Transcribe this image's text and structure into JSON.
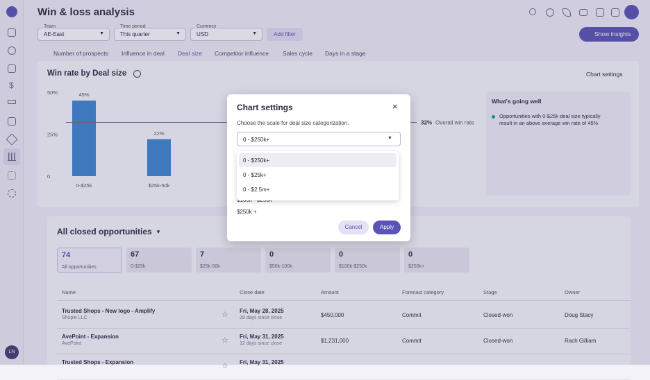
{
  "header": {
    "title": "Win & loss analysis"
  },
  "filters": [
    {
      "label": "Team",
      "value": "AE-East"
    },
    {
      "label": "Time period",
      "value": "This quarter"
    },
    {
      "label": "Currency",
      "value": "USD"
    }
  ],
  "add_filter": "Add filter",
  "show_insights": "Show insights",
  "tabs": [
    "Number of prospects",
    "Influence in deal",
    "Deal size",
    "Competitor influence",
    "Sales cycle",
    "Days in a stage"
  ],
  "active_tab": 2,
  "chart_card": {
    "title": "Win rate by Deal size",
    "settings_button": "Chart settings",
    "chart": {
      "type": "bar",
      "categories": [
        "0-$25k",
        "$25k-50k"
      ],
      "values": [
        45,
        22
      ],
      "value_labels": [
        "45%",
        "22%"
      ],
      "color": "#3d86cf",
      "ylim": [
        0,
        50
      ],
      "yticks": [
        0,
        {
          "value": 25,
          "label": "25%"
        },
        {
          "value": 50,
          "label": "50%"
        }
      ],
      "reference": {
        "value": 32,
        "label": "32%",
        "text": "Overall win rate"
      }
    }
  },
  "insights": {
    "title": "What's going well",
    "items": [
      "Opportunities with 0-$25k deal size typically result in an above average win rate of 45%"
    ]
  },
  "opportunities": {
    "title": "All closed opportunities",
    "tiles": [
      {
        "count": 74,
        "label": "All opportunities"
      },
      {
        "count": 67,
        "label": "0-$25k"
      },
      {
        "count": 7,
        "label": "$25k-50k"
      },
      {
        "count": 0,
        "label": "$50k-100k"
      },
      {
        "count": 0,
        "label": "$100k-$250k"
      },
      {
        "count": 0,
        "label": "$250k+"
      }
    ],
    "columns": [
      "Name",
      "Close date",
      "Amount",
      "Forecast category",
      "Stage",
      "Owner"
    ],
    "rows": [
      {
        "name": "Trusted Shops - New logo - Amplify",
        "account": "Shopie LLC",
        "close_date": "Fri, May 28, 2025",
        "since": "28 days since close",
        "amount": "$450,000",
        "forecast": "Commit",
        "stage": "Closed-won",
        "owner": "Doug Stacy"
      },
      {
        "name": "AvePoint - Expansion",
        "account": "AvePoint",
        "close_date": "Fri, May 31, 2025",
        "since": "12 days since close",
        "amount": "$1,231,000",
        "forecast": "Commit",
        "stage": "Closed-won",
        "owner": "Rach Gilliam"
      },
      {
        "name": "Trusted Shops - Expansion",
        "close_date": "Fri, May 31, 2025"
      }
    ]
  },
  "modal": {
    "title": "Chart settings",
    "description": "Choose the scale for deal size categorization.",
    "selected": "0 - $250k+",
    "options": [
      "0 - $250k+",
      "0 - $25k+",
      "0 - $2.5m+"
    ],
    "behind_text": [
      "$100k - $250k",
      "$250k +"
    ],
    "cancel": "Cancel",
    "apply": "Apply"
  },
  "user": {
    "initials": "LN"
  }
}
